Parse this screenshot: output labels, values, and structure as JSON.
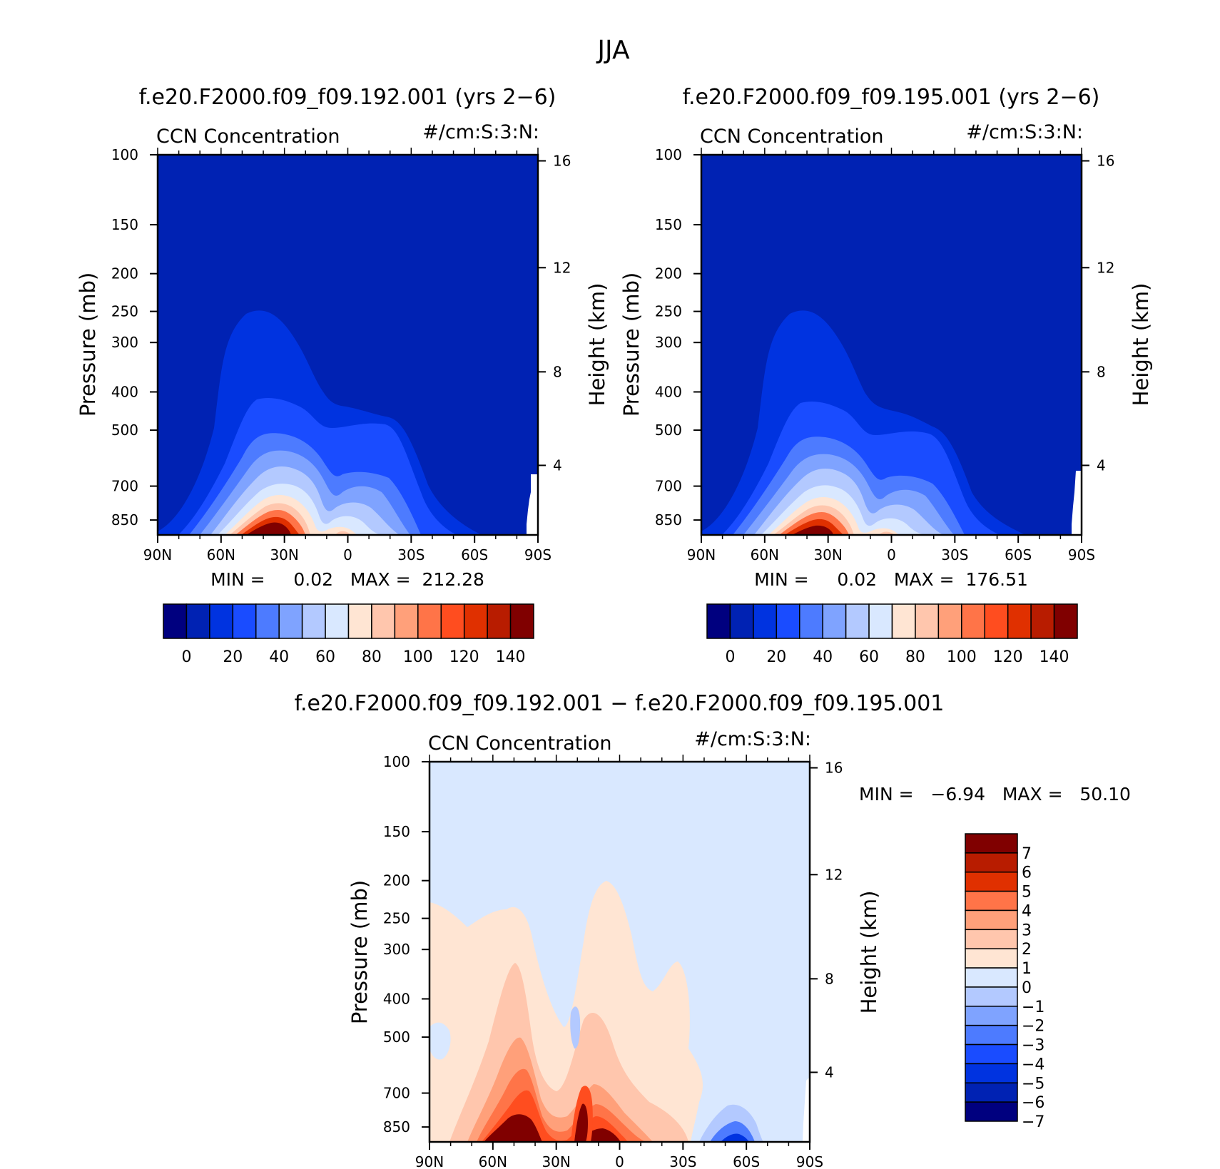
{
  "figure_title": "JJA",
  "chart_data": [
    {
      "type": "contour",
      "id": "p1",
      "title": "f.e20.F2000.f09_f09.192.001 (yrs 2−6)",
      "left_subtitle": "CCN Concentration",
      "right_subtitle": "#/cm:S:3:N:",
      "ylabel": "Pressure (mb)",
      "ylabel_right": "Height (km)",
      "x_ticks": [
        "90N",
        "60N",
        "30N",
        "0",
        "30S",
        "60S",
        "90S"
      ],
      "y_ticks": [
        "100",
        "150",
        "200",
        "250",
        "300",
        "400",
        "500",
        "700",
        "850"
      ],
      "height_ticks": [
        "16",
        "12",
        "8",
        "4"
      ],
      "min_max_text": "MIN =     0.02   MAX =  212.28",
      "stats": {
        "min": 0.02,
        "max": 212.28
      },
      "colorbar": {
        "orientation": "horizontal",
        "colors": [
          "#00007f",
          "#0022b3",
          "#0033e0",
          "#1a4cff",
          "#4d7bff",
          "#7fa3ff",
          "#b3c9ff",
          "#d9e8ff",
          "#ffe5d3",
          "#ffc6ad",
          "#ffa07a",
          "#ff7448",
          "#ff4d1f",
          "#e03000",
          "#b81c00",
          "#800000"
        ],
        "labels": [
          "0",
          "20",
          "40",
          "60",
          "80",
          "100",
          "120",
          "140"
        ]
      }
    },
    {
      "type": "contour",
      "id": "p2",
      "title": "f.e20.F2000.f09_f09.195.001 (yrs 2−6)",
      "left_subtitle": "CCN Concentration",
      "right_subtitle": "#/cm:S:3:N:",
      "ylabel": "Pressure (mb)",
      "ylabel_right": "Height (km)",
      "x_ticks": [
        "90N",
        "60N",
        "30N",
        "0",
        "30S",
        "60S",
        "90S"
      ],
      "y_ticks": [
        "100",
        "150",
        "200",
        "250",
        "300",
        "400",
        "500",
        "700",
        "850"
      ],
      "height_ticks": [
        "16",
        "12",
        "8",
        "4"
      ],
      "min_max_text": "MIN =     0.02   MAX =  176.51",
      "stats": {
        "min": 0.02,
        "max": 176.51
      },
      "colorbar": {
        "orientation": "horizontal",
        "colors": [
          "#00007f",
          "#0022b3",
          "#0033e0",
          "#1a4cff",
          "#4d7bff",
          "#7fa3ff",
          "#b3c9ff",
          "#d9e8ff",
          "#ffe5d3",
          "#ffc6ad",
          "#ffa07a",
          "#ff7448",
          "#ff4d1f",
          "#e03000",
          "#b81c00",
          "#800000"
        ],
        "labels": [
          "0",
          "20",
          "40",
          "60",
          "80",
          "100",
          "120",
          "140"
        ]
      }
    },
    {
      "type": "contour",
      "id": "p3",
      "title": "f.e20.F2000.f09_f09.192.001 − f.e20.F2000.f09_f09.195.001",
      "left_subtitle": "CCN Concentration",
      "right_subtitle": "#/cm:S:3:N:",
      "ylabel": "Pressure (mb)",
      "ylabel_right": "Height (km)",
      "x_ticks": [
        "90N",
        "60N",
        "30N",
        "0",
        "30S",
        "60S",
        "90S"
      ],
      "y_ticks": [
        "100",
        "150",
        "200",
        "250",
        "300",
        "400",
        "500",
        "700",
        "850"
      ],
      "height_ticks": [
        "16",
        "12",
        "8",
        "4"
      ],
      "min_max_text": "MIN =   −6.94   MAX =   50.10",
      "stats": {
        "min": -6.94,
        "max": 50.1
      },
      "colorbar": {
        "orientation": "vertical",
        "colors": [
          "#800000",
          "#b81c00",
          "#e03000",
          "#ff7448",
          "#ffa07a",
          "#ffc6ad",
          "#ffe5d3",
          "#d9e8ff",
          "#b3c9ff",
          "#7fa3ff",
          "#4d7bff",
          "#1a4cff",
          "#0033e0",
          "#0022b3",
          "#00007f"
        ],
        "labels": [
          "7",
          "6",
          "5",
          "4",
          "3",
          "2",
          "1",
          "0",
          "−1",
          "−2",
          "−3",
          "−4",
          "−5",
          "−6",
          "−7"
        ]
      }
    }
  ]
}
